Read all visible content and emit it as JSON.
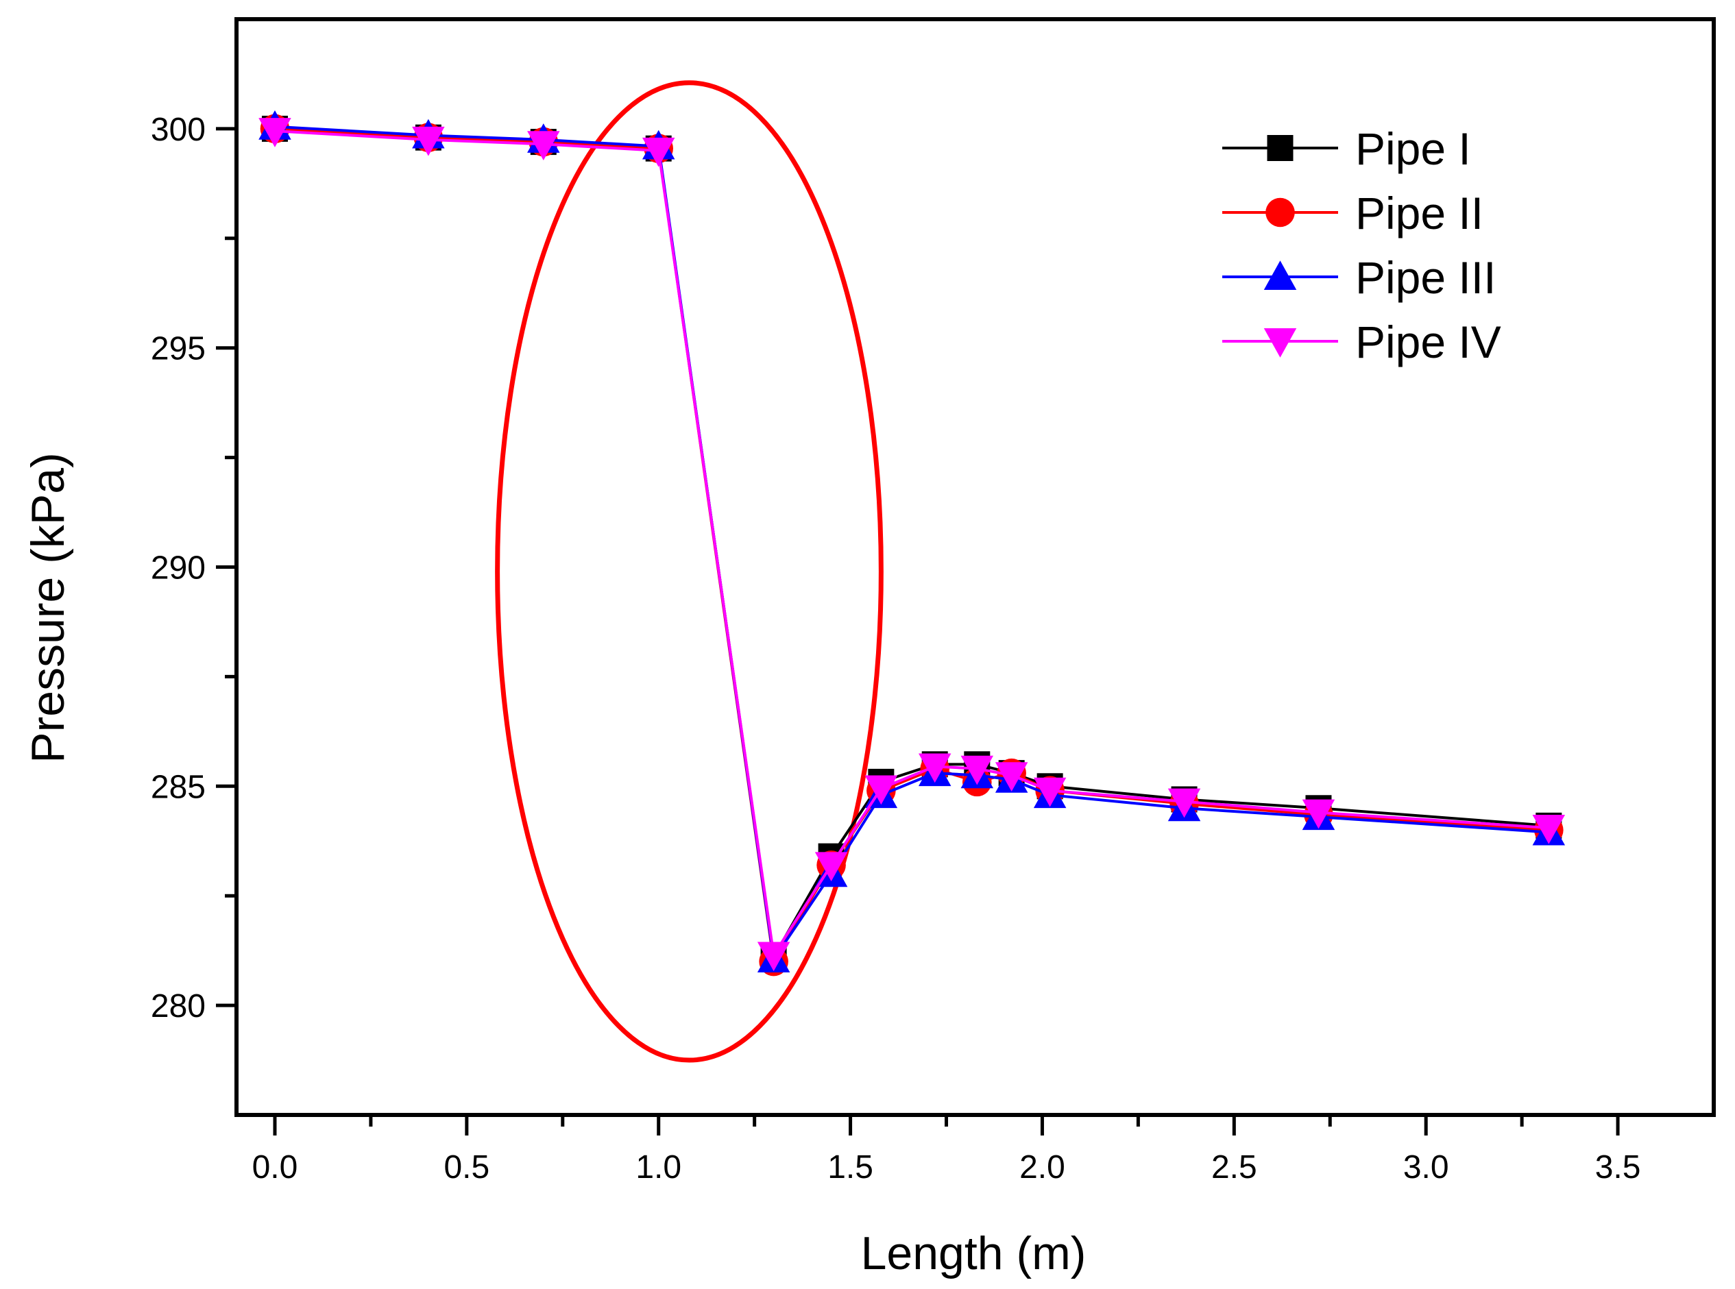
{
  "chart_data": {
    "type": "line",
    "title": "",
    "xlabel": "Length (m)",
    "ylabel": "Pressure (kPa)",
    "xlim": [
      -0.1,
      3.75
    ],
    "ylim": [
      277.5,
      302.5
    ],
    "xticks": [
      0.0,
      0.5,
      1.0,
      1.5,
      2.0,
      2.5,
      3.0,
      3.5
    ],
    "xtick_labels": [
      "0.0",
      "0.5",
      "1.0",
      "1.5",
      "2.0",
      "2.5",
      "3.0",
      "3.5"
    ],
    "yticks": [
      280,
      285,
      290,
      295,
      300
    ],
    "ytick_labels": [
      "280",
      "285",
      "290",
      "295",
      "300"
    ],
    "grid": false,
    "legend_position": "top-right",
    "x": [
      0.0,
      0.4,
      0.7,
      1.0,
      1.3,
      1.45,
      1.58,
      1.72,
      1.83,
      1.92,
      2.02,
      2.37,
      2.72,
      3.32
    ],
    "series": [
      {
        "name": "Pipe I",
        "color": "#000000",
        "marker": "square",
        "values": [
          300.0,
          299.8,
          299.7,
          299.55,
          281.1,
          283.4,
          285.1,
          285.5,
          285.5,
          285.3,
          285.0,
          284.7,
          284.5,
          284.1
        ]
      },
      {
        "name": "Pipe II",
        "color": "#ff0000",
        "marker": "circle",
        "values": [
          300.0,
          299.8,
          299.7,
          299.55,
          281.0,
          283.2,
          284.9,
          285.4,
          285.1,
          285.3,
          284.9,
          284.6,
          284.35,
          284.0
        ]
      },
      {
        "name": "Pipe III",
        "color": "#0000ff",
        "marker": "triangle-up",
        "values": [
          300.05,
          299.85,
          299.75,
          299.6,
          281.05,
          283.0,
          284.8,
          285.3,
          285.25,
          285.15,
          284.8,
          284.5,
          284.3,
          283.95
        ]
      },
      {
        "name": "Pipe IV",
        "color": "#ff00ff",
        "marker": "triangle-down",
        "values": [
          299.95,
          299.75,
          299.65,
          299.5,
          281.15,
          283.2,
          284.95,
          285.45,
          285.4,
          285.25,
          284.9,
          284.65,
          284.4,
          284.05
        ]
      }
    ],
    "annotations": [
      {
        "type": "ellipse",
        "color": "#ff0000",
        "center_x": 1.08,
        "center_y": 289.9,
        "radius_x": 0.5,
        "radius_y": 11.15
      }
    ]
  }
}
